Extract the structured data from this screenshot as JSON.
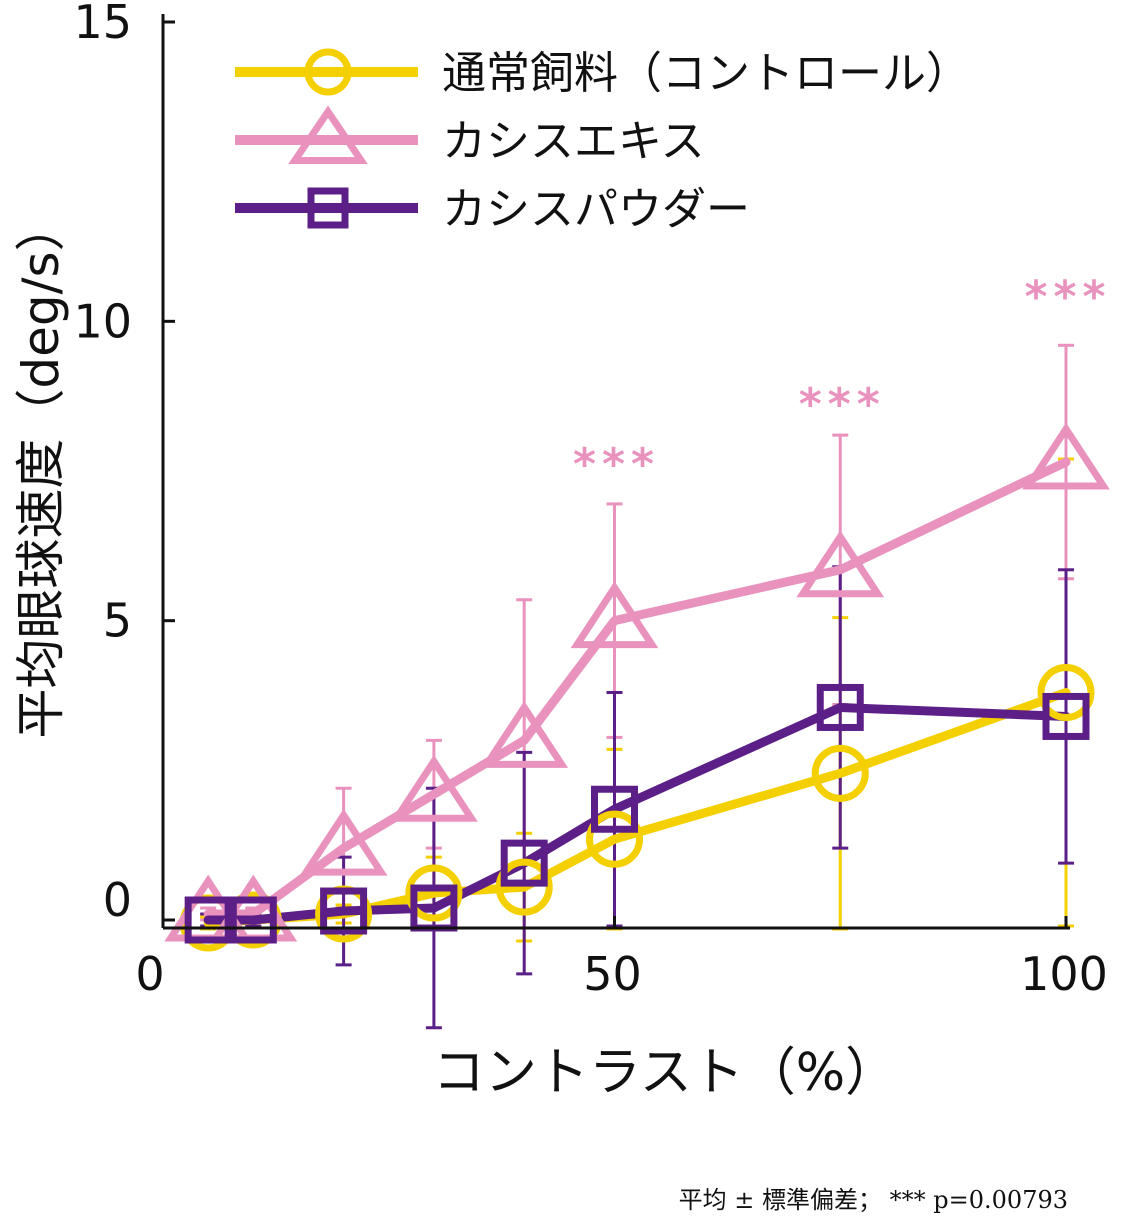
{
  "chart_data": {
    "type": "line",
    "xlabel": "コントラスト（%）",
    "ylabel": "平均眼球速度（deg/s）",
    "xlim": [
      0,
      100
    ],
    "ylim": [
      0,
      15
    ],
    "xticks": [
      "0",
      "50",
      "100"
    ],
    "xtick_values": [
      0,
      50,
      100
    ],
    "yticks": [
      "0",
      "5",
      "10",
      "15"
    ],
    "ytick_values": [
      0,
      5,
      10,
      15
    ],
    "footnote": "平均 ± 標準偏差； *** p=0.00793",
    "significance": [
      {
        "x": 50,
        "y": 7.7,
        "label": "***"
      },
      {
        "x": 75,
        "y": 8.7,
        "label": "***"
      },
      {
        "x": 100,
        "y": 10.5,
        "label": "***"
      }
    ],
    "series": [
      {
        "name": "通常飼料（コントロール）",
        "marker": "circle",
        "color": "#f5d000",
        "x": [
          5,
          10,
          20,
          30,
          40,
          50,
          75,
          100
        ],
        "y": [
          -0.05,
          0.0,
          0.1,
          0.45,
          0.55,
          1.35,
          2.45,
          3.8
        ],
        "err": [
          0.1,
          0.1,
          0.15,
          0.6,
          0.9,
          1.5,
          2.6,
          3.9
        ]
      },
      {
        "name": "カシスエキス",
        "marker": "triangle",
        "color": "#e892bd",
        "x": [
          5,
          10,
          20,
          30,
          40,
          50,
          75,
          100
        ],
        "y": [
          0.1,
          0.1,
          1.2,
          2.1,
          3.0,
          5.0,
          5.85,
          7.65
        ],
        "err": [
          0.1,
          0.1,
          1.0,
          0.9,
          2.35,
          1.95,
          2.25,
          1.95
        ]
      },
      {
        "name": "カシスパウダー",
        "marker": "square",
        "color": "#5c1f87",
        "x": [
          5,
          10,
          20,
          30,
          40,
          50,
          75,
          100
        ],
        "y": [
          0.0,
          0.0,
          0.15,
          0.2,
          0.95,
          1.85,
          3.55,
          3.4
        ],
        "err": [
          0.1,
          0.1,
          0.9,
          2.0,
          1.85,
          1.95,
          2.35,
          2.45
        ]
      }
    ]
  }
}
